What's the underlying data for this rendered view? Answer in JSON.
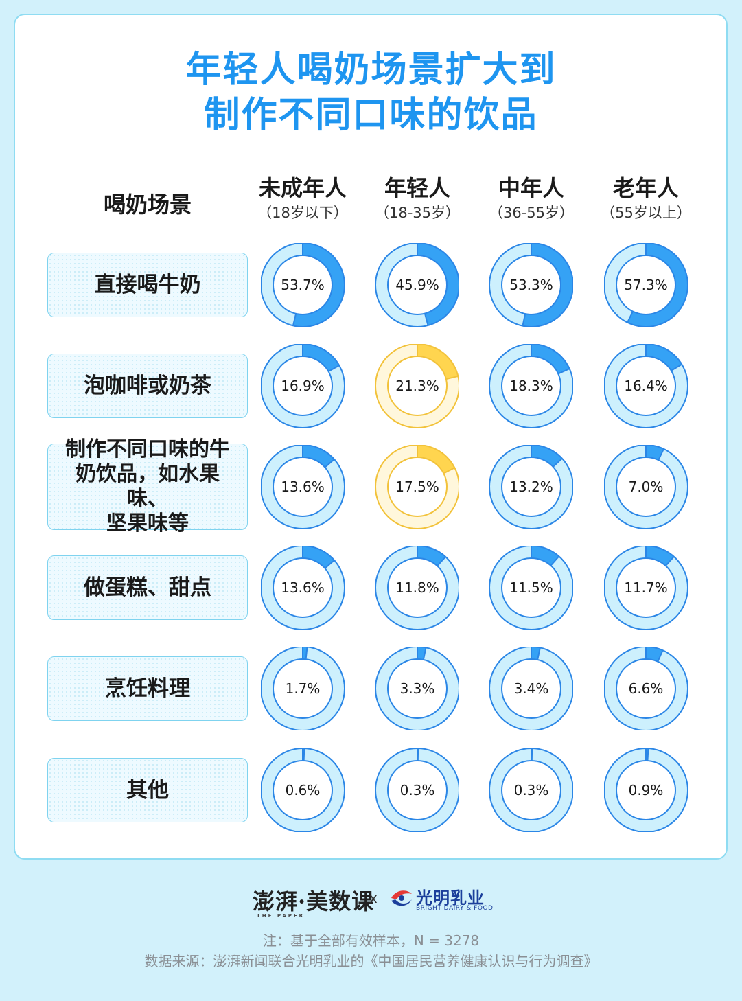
{
  "title": {
    "line1": "年轻人喝奶场景扩大到",
    "line2": "制作不同口味的饮品"
  },
  "header": {
    "row_label": "喝奶场景",
    "groups": [
      {
        "name": "未成年人",
        "range": "（18岁以下）"
      },
      {
        "name": "年轻人",
        "range": "（18-35岁）"
      },
      {
        "name": "中年人",
        "range": "（36-55岁）"
      },
      {
        "name": "老年人",
        "range": "（55岁以上）"
      }
    ]
  },
  "chart_data": {
    "type": "donut-grid",
    "categories": [
      "未成年人",
      "年轻人",
      "中年人",
      "老年人"
    ],
    "rows": [
      {
        "label_lines": [
          "直接喝牛奶"
        ],
        "values": [
          53.7,
          45.9,
          53.3,
          57.3
        ],
        "labels": [
          "53.7%",
          "45.9%",
          "53.3%",
          "57.3%"
        ],
        "highlight": [
          false,
          false,
          false,
          false
        ]
      },
      {
        "label_lines": [
          "泡咖啡或奶茶"
        ],
        "values": [
          16.9,
          21.3,
          18.3,
          16.4
        ],
        "labels": [
          "16.9%",
          "21.3%",
          "18.3%",
          "16.4%"
        ],
        "highlight": [
          false,
          true,
          false,
          false
        ]
      },
      {
        "label_lines": [
          "制作不同口味的牛",
          "奶饮品，如水果味、",
          "坚果味等"
        ],
        "values": [
          13.6,
          17.5,
          13.2,
          7.0
        ],
        "labels": [
          "13.6%",
          "17.5%",
          "13.2%",
          "7.0%"
        ],
        "highlight": [
          false,
          true,
          false,
          false
        ]
      },
      {
        "label_lines": [
          "做蛋糕、甜点"
        ],
        "values": [
          13.6,
          11.8,
          11.5,
          11.7
        ],
        "labels": [
          "13.6%",
          "11.8%",
          "11.5%",
          "11.7%"
        ],
        "highlight": [
          false,
          false,
          false,
          false
        ]
      },
      {
        "label_lines": [
          "烹饪料理"
        ],
        "values": [
          1.7,
          3.3,
          3.4,
          6.6
        ],
        "labels": [
          "1.7%",
          "3.3%",
          "3.4%",
          "6.6%"
        ],
        "highlight": [
          false,
          false,
          false,
          false
        ]
      },
      {
        "label_lines": [
          "其他"
        ],
        "values": [
          0.6,
          0.3,
          0.3,
          0.9
        ],
        "labels": [
          "0.6%",
          "0.3%",
          "0.3%",
          "0.9%"
        ],
        "highlight": [
          false,
          false,
          false,
          false
        ]
      }
    ],
    "colors": {
      "blue_fill": "#35a2f5",
      "blue_track": "#cdf0fd",
      "blue_stroke": "#2b86e6",
      "yellow_fill": "#ffd54f",
      "yellow_track": "#fff7dc",
      "yellow_stroke": "#f2c23a"
    }
  },
  "footer": {
    "logo_left": "澎湃·美数课",
    "logo_left_sub": "THE PAPER",
    "cross": "x",
    "logo_right": "光明乳业",
    "logo_right_sub": "BRIGHT DAIRY & FOOD",
    "note": "注：基于全部有效样本，N = 3278",
    "source": "数据来源：澎湃新闻联合光明乳业的《中国居民营养健康认识与行为调查》"
  }
}
